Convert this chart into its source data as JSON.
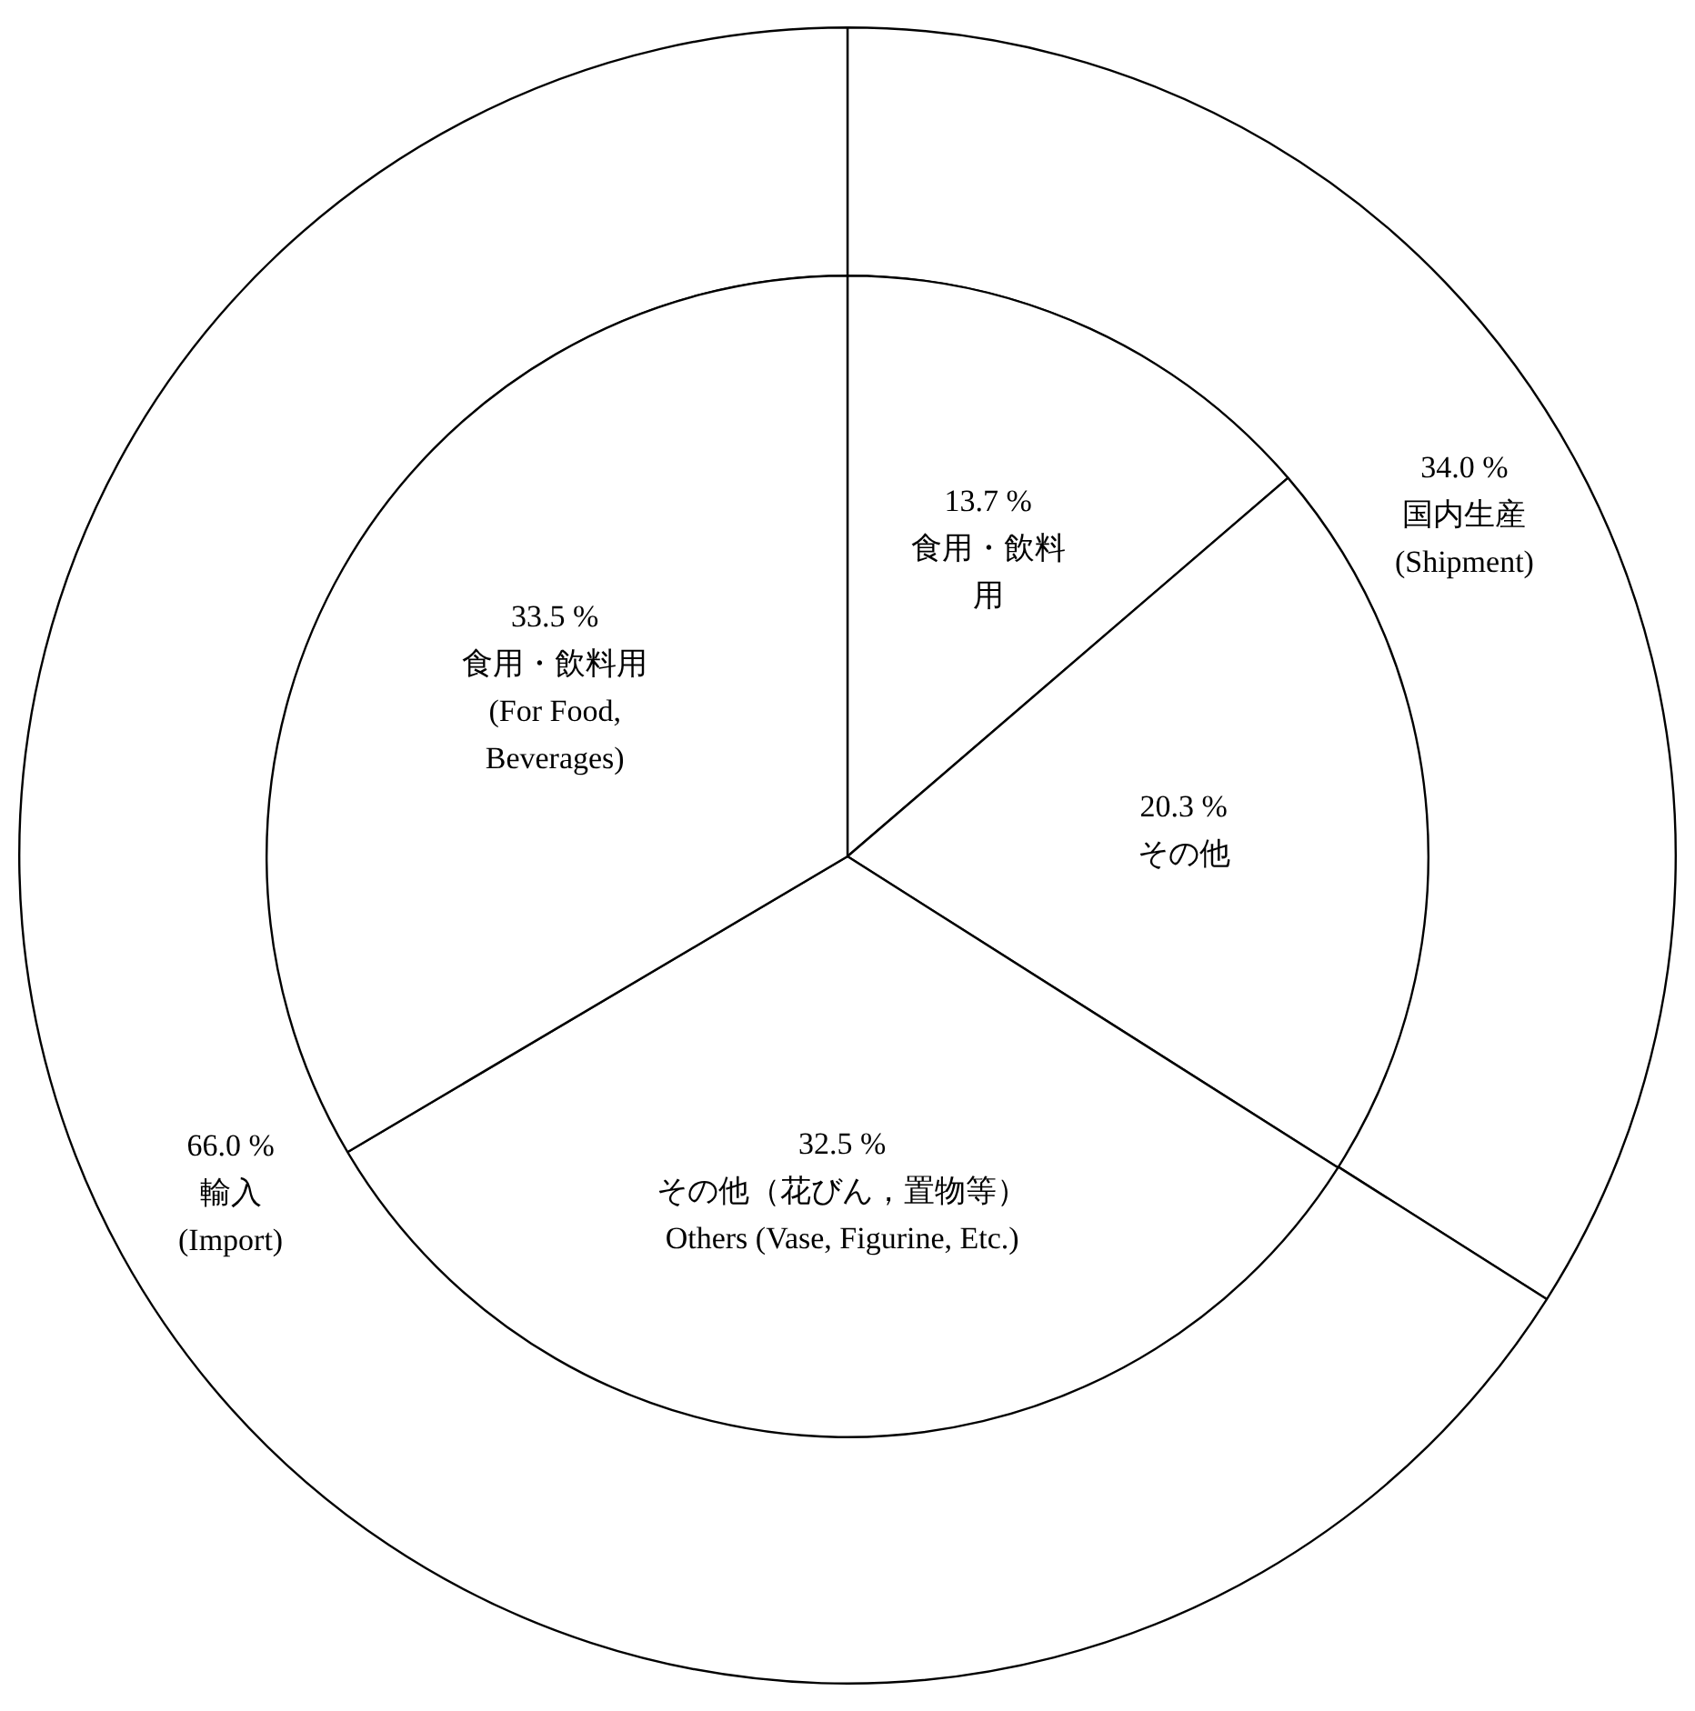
{
  "chart_data": [
    {
      "type": "donut",
      "legend": false,
      "categories": [
        "国内生産\n(Shipment)",
        "輸入\n(Import)"
      ],
      "values": [
        34.0,
        66.0
      ],
      "value_labels": [
        "34.0 %",
        "66.0 %"
      ],
      "colors": [
        "#ffffff",
        "#ffffff"
      ]
    },
    {
      "type": "pie",
      "legend": false,
      "categories": [
        "食用・飲料用",
        "その他",
        "その他（花びん，置物等）\nOthers (Vase, Figurine, Etc.)",
        "食用・飲料用\n(For Food,\nBeverages)"
      ],
      "values": [
        13.7,
        20.3,
        32.5,
        33.5
      ],
      "value_labels": [
        "13.7 %",
        "20.3 %",
        "32.5 %",
        "33.5 %"
      ],
      "colors": [
        "#ffffff",
        "#ffffff",
        "#ffffff",
        "#ffffff"
      ]
    }
  ]
}
